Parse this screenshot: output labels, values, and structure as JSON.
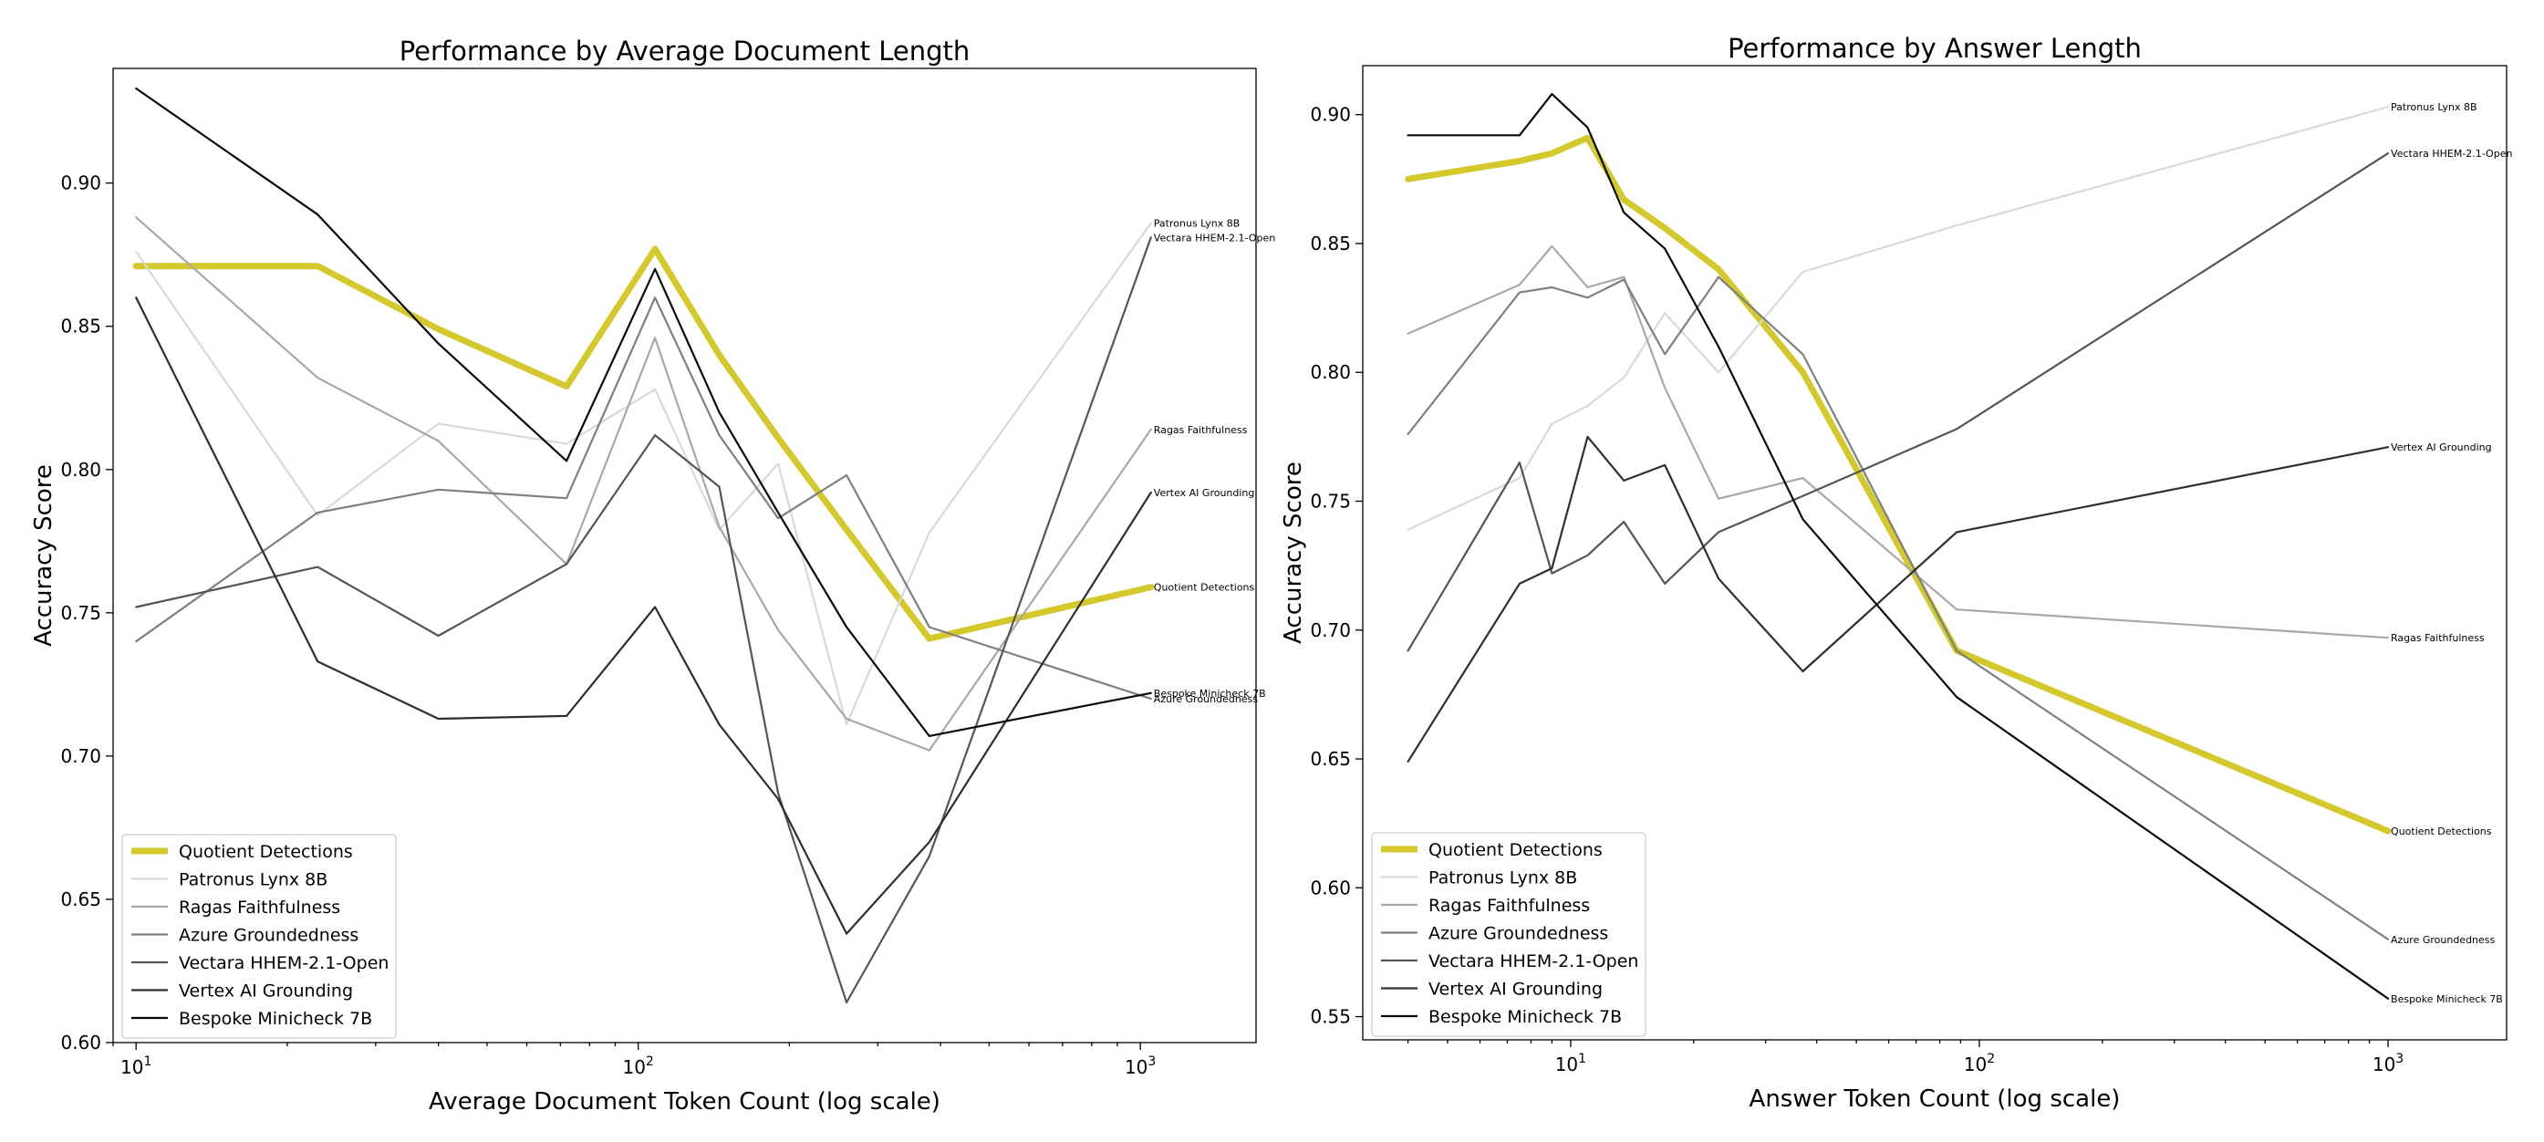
{
  "chart_data": [
    {
      "type": "line",
      "title": "Performance by Average Document Length",
      "xlabel": "Average Document Token Count (log scale)",
      "ylabel": "Accuracy Score",
      "xscale": "log",
      "xlim": [
        9,
        1700
      ],
      "ylim": [
        0.6,
        0.94
      ],
      "x_ticks": [
        {
          "value": 10,
          "base": "10",
          "exp": "1"
        },
        {
          "value": 100,
          "base": "10",
          "exp": "2"
        },
        {
          "value": 1000,
          "base": "10",
          "exp": "3"
        }
      ],
      "y_ticks": [
        "0.60",
        "0.65",
        "0.70",
        "0.75",
        "0.80",
        "0.85",
        "0.90"
      ],
      "legend_position": "lower-left",
      "grid": false,
      "series": [
        {
          "name": "Quotient Detections",
          "color": "#d4c92c",
          "width": 7,
          "end_label": "Quotient Detections",
          "x": [
            10,
            23,
            40,
            72,
            108,
            145,
            190,
            260,
            380,
            1050
          ],
          "y": [
            0.871,
            0.871,
            0.849,
            0.829,
            0.877,
            0.84,
            0.811,
            0.779,
            0.741,
            0.759
          ]
        },
        {
          "name": "Patronus Lynx 8B",
          "color": "#d9d9d9",
          "width": 2.2,
          "end_label": "Patronus Lynx 8B",
          "x": [
            10,
            23,
            40,
            72,
            108,
            145,
            190,
            260,
            380,
            1050
          ],
          "y": [
            0.876,
            0.784,
            0.816,
            0.809,
            0.828,
            0.779,
            0.802,
            0.711,
            0.778,
            0.886
          ]
        },
        {
          "name": "Ragas Faithfulness",
          "color": "#a8a8a8",
          "width": 2.2,
          "end_label": "Ragas Faithfulness",
          "x": [
            10,
            23,
            40,
            72,
            108,
            145,
            190,
            260,
            380,
            1050
          ],
          "y": [
            0.888,
            0.832,
            0.81,
            0.767,
            0.846,
            0.78,
            0.744,
            0.713,
            0.702,
            0.814
          ]
        },
        {
          "name": "Azure Groundedness",
          "color": "#7f7f7f",
          "width": 2.2,
          "end_label": "Azure Groundedness",
          "x": [
            10,
            23,
            40,
            72,
            108,
            145,
            190,
            260,
            380,
            1050
          ],
          "y": [
            0.74,
            0.785,
            0.793,
            0.79,
            0.86,
            0.812,
            0.783,
            0.798,
            0.745,
            0.72
          ]
        },
        {
          "name": "Vectara HHEM-2.1-Open",
          "color": "#555555",
          "width": 2.2,
          "end_label": "Vectara HHEM-2.1-Open",
          "x": [
            10,
            23,
            40,
            72,
            108,
            145,
            190,
            260,
            380,
            1050
          ],
          "y": [
            0.752,
            0.766,
            0.742,
            0.767,
            0.812,
            0.794,
            0.687,
            0.614,
            0.665,
            0.881
          ]
        },
        {
          "name": "Vertex AI Grounding",
          "color": "#2e2e2e",
          "width": 2.2,
          "end_label": "Vertex AI Grounding",
          "x": [
            10,
            23,
            40,
            72,
            108,
            145,
            190,
            260,
            380,
            1050
          ],
          "y": [
            0.86,
            0.733,
            0.713,
            0.714,
            0.752,
            0.711,
            0.685,
            0.638,
            0.67,
            0.792
          ]
        },
        {
          "name": "Bespoke Minicheck 7B",
          "color": "#0a0a0a",
          "width": 2.2,
          "end_label": "Bespoke Minicheck 7B",
          "x": [
            10,
            23,
            40,
            72,
            108,
            145,
            190,
            260,
            380,
            1050
          ],
          "y": [
            0.933,
            0.889,
            0.844,
            0.803,
            0.87,
            0.82,
            0.785,
            0.745,
            0.707,
            0.722
          ]
        }
      ]
    },
    {
      "type": "line",
      "title": "Performance by Answer Length",
      "xlabel": "Answer Token Count (log scale)",
      "ylabel": "Accuracy Score",
      "xscale": "log",
      "xlim": [
        3.1,
        1950
      ],
      "ylim": [
        0.541,
        0.919
      ],
      "x_ticks": [
        {
          "value": 10,
          "base": "10",
          "exp": "1"
        },
        {
          "value": 100,
          "base": "10",
          "exp": "2"
        },
        {
          "value": 1000,
          "base": "10",
          "exp": "3"
        }
      ],
      "y_ticks": [
        "0.55",
        "0.60",
        "0.65",
        "0.70",
        "0.75",
        "0.80",
        "0.85",
        "0.90"
      ],
      "legend_position": "lower-left",
      "grid": false,
      "series": [
        {
          "name": "Quotient Detections",
          "color": "#d4c92c",
          "width": 7,
          "end_label": "Quotient Detections",
          "x": [
            4,
            7.5,
            9,
            11,
            13.5,
            17,
            23,
            37,
            88,
            1000
          ],
          "y": [
            0.875,
            0.882,
            0.885,
            0.891,
            0.867,
            0.856,
            0.84,
            0.8,
            0.692,
            0.622
          ]
        },
        {
          "name": "Patronus Lynx 8B",
          "color": "#d9d9d9",
          "width": 2.2,
          "end_label": "Patronus Lynx 8B",
          "x": [
            4,
            7.5,
            9,
            11,
            13.5,
            17,
            23,
            37,
            88,
            1000
          ],
          "y": [
            0.739,
            0.759,
            0.78,
            0.787,
            0.798,
            0.823,
            0.8,
            0.839,
            0.857,
            0.903
          ]
        },
        {
          "name": "Ragas Faithfulness",
          "color": "#a8a8a8",
          "width": 2.2,
          "end_label": "Ragas Faithfulness",
          "x": [
            4,
            7.5,
            9,
            11,
            13.5,
            17,
            23,
            37,
            88,
            1000
          ],
          "y": [
            0.815,
            0.834,
            0.849,
            0.833,
            0.837,
            0.794,
            0.751,
            0.759,
            0.708,
            0.697
          ]
        },
        {
          "name": "Azure Groundedness",
          "color": "#7f7f7f",
          "width": 2.2,
          "end_label": "Azure Groundedness",
          "x": [
            4,
            7.5,
            9,
            11,
            13.5,
            17,
            23,
            37,
            88,
            1000
          ],
          "y": [
            0.776,
            0.831,
            0.833,
            0.829,
            0.836,
            0.807,
            0.837,
            0.807,
            0.692,
            0.58
          ]
        },
        {
          "name": "Vectara HHEM-2.1-Open",
          "color": "#555555",
          "width": 2.2,
          "end_label": "Vectara HHEM-2.1-Open",
          "x": [
            4,
            7.5,
            9,
            11,
            13.5,
            17,
            23,
            37,
            88,
            1000
          ],
          "y": [
            0.692,
            0.765,
            0.722,
            0.729,
            0.742,
            0.718,
            0.738,
            0.752,
            0.778,
            0.885
          ]
        },
        {
          "name": "Vertex AI Grounding",
          "color": "#2e2e2e",
          "width": 2.2,
          "end_label": "Vertex AI Grounding",
          "x": [
            4,
            7.5,
            9,
            11,
            13.5,
            17,
            23,
            37,
            88,
            1000
          ],
          "y": [
            0.649,
            0.718,
            0.724,
            0.775,
            0.758,
            0.764,
            0.72,
            0.684,
            0.738,
            0.771
          ]
        },
        {
          "name": "Bespoke Minicheck 7B",
          "color": "#0a0a0a",
          "width": 2.2,
          "end_label": "Bespoke Minicheck 7B",
          "x": [
            4,
            7.5,
            9,
            11,
            13.5,
            17,
            23,
            37,
            88,
            1000
          ],
          "y": [
            0.892,
            0.892,
            0.908,
            0.895,
            0.862,
            0.848,
            0.81,
            0.743,
            0.674,
            0.557
          ]
        }
      ]
    }
  ]
}
